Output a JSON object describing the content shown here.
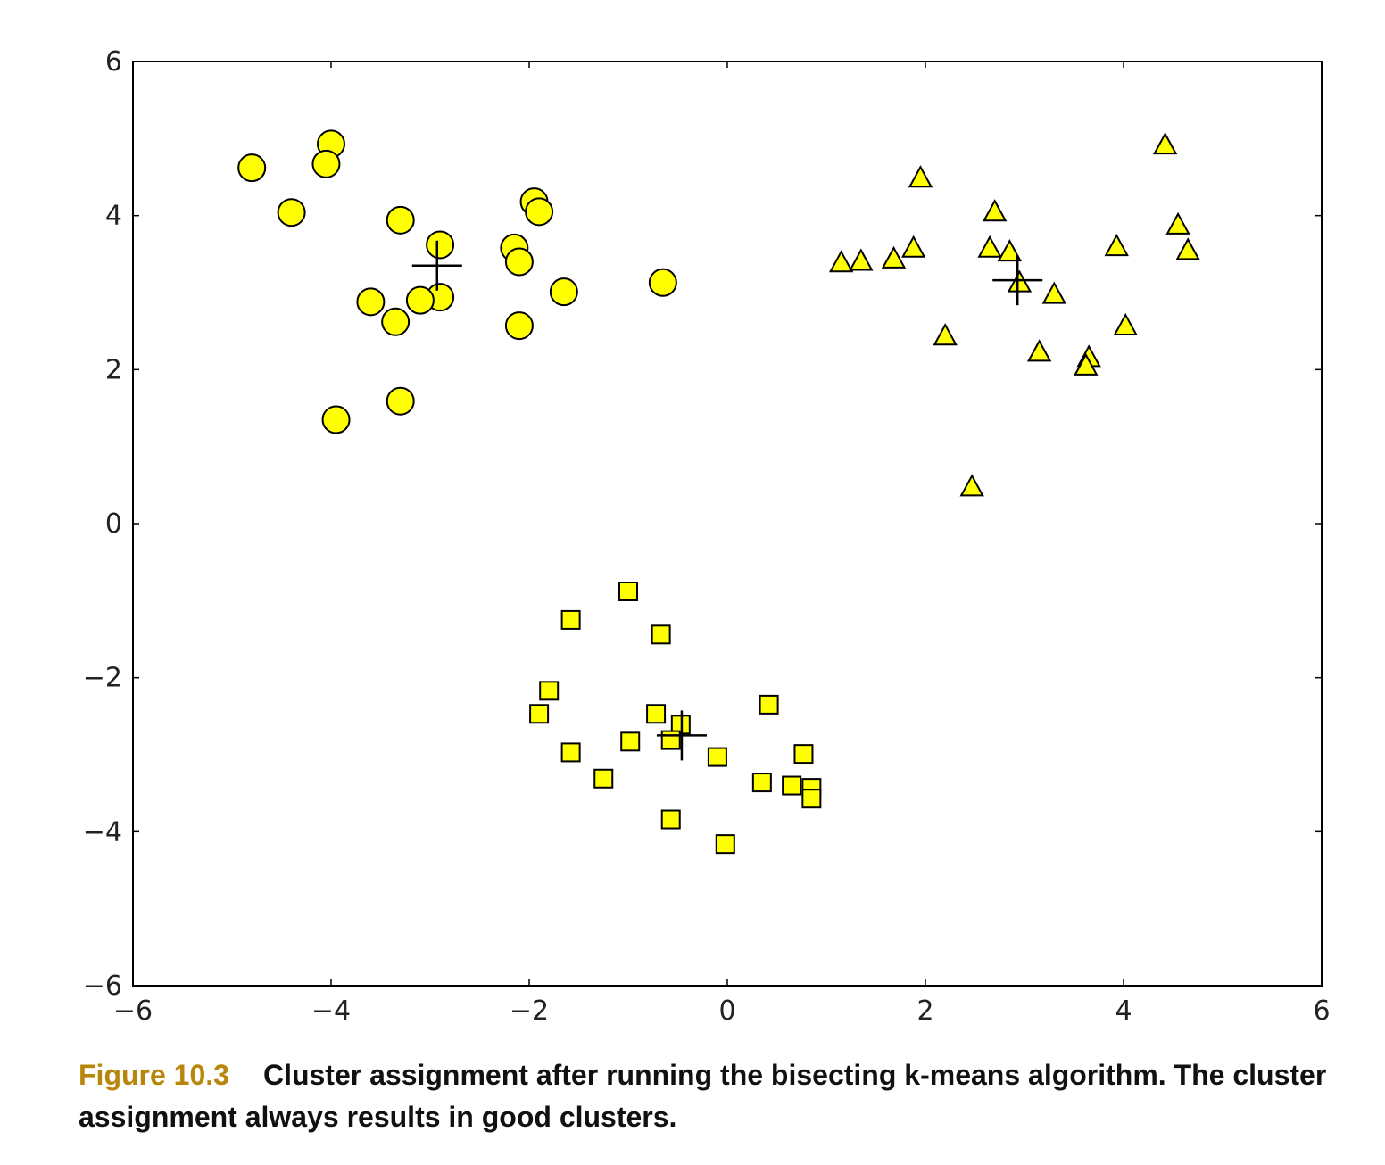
{
  "chart_data": {
    "type": "scatter",
    "xlim": [
      -6,
      6
    ],
    "ylim": [
      -6,
      6
    ],
    "xticks": [
      "−6",
      "−4",
      "−2",
      "0",
      "2",
      "4",
      "6"
    ],
    "yticks": [
      "−6",
      "−4",
      "−2",
      "0",
      "2",
      "4",
      "6"
    ],
    "grid": false,
    "marker_color": "#ffff00",
    "series": [
      {
        "marker": "circle",
        "points": [
          [
            -4.8,
            4.62
          ],
          [
            -4.4,
            4.04
          ],
          [
            -4.0,
            4.93
          ],
          [
            -4.05,
            4.67
          ],
          [
            -3.3,
            3.94
          ],
          [
            -2.9,
            3.62
          ],
          [
            -2.9,
            2.94
          ],
          [
            -3.1,
            2.9
          ],
          [
            -3.6,
            2.88
          ],
          [
            -3.35,
            2.62
          ],
          [
            -3.3,
            1.59
          ],
          [
            -3.95,
            1.35
          ],
          [
            -1.95,
            4.18
          ],
          [
            -1.9,
            4.05
          ],
          [
            -2.15,
            3.58
          ],
          [
            -2.1,
            3.4
          ],
          [
            -2.1,
            2.57
          ],
          [
            -1.65,
            3.01
          ],
          [
            -0.65,
            3.13
          ]
        ]
      },
      {
        "marker": "triangle",
        "points": [
          [
            1.15,
            3.38
          ],
          [
            1.35,
            3.4
          ],
          [
            1.68,
            3.43
          ],
          [
            1.88,
            3.57
          ],
          [
            1.95,
            4.48
          ],
          [
            2.2,
            2.43
          ],
          [
            2.47,
            0.47
          ],
          [
            2.65,
            3.57
          ],
          [
            2.7,
            4.04
          ],
          [
            2.85,
            3.52
          ],
          [
            2.95,
            3.12
          ],
          [
            3.15,
            2.22
          ],
          [
            3.3,
            2.97
          ],
          [
            3.65,
            2.15
          ],
          [
            3.62,
            2.04
          ],
          [
            3.93,
            3.59
          ],
          [
            4.02,
            2.56
          ],
          [
            4.42,
            4.91
          ],
          [
            4.55,
            3.87
          ],
          [
            4.65,
            3.54
          ]
        ]
      },
      {
        "marker": "square",
        "points": [
          [
            -1.0,
            -0.88
          ],
          [
            -1.58,
            -1.25
          ],
          [
            -0.67,
            -1.44
          ],
          [
            -1.8,
            -2.17
          ],
          [
            -1.9,
            -2.47
          ],
          [
            -0.72,
            -2.47
          ],
          [
            -0.47,
            -2.61
          ],
          [
            -0.57,
            -2.81
          ],
          [
            -0.98,
            -2.83
          ],
          [
            -1.58,
            -2.97
          ],
          [
            -0.1,
            -3.03
          ],
          [
            0.42,
            -2.35
          ],
          [
            0.77,
            -2.99
          ],
          [
            -1.25,
            -3.31
          ],
          [
            0.35,
            -3.36
          ],
          [
            0.65,
            -3.4
          ],
          [
            0.85,
            -3.43
          ],
          [
            0.85,
            -3.57
          ],
          [
            -0.57,
            -3.84
          ],
          [
            -0.02,
            -4.16
          ]
        ]
      }
    ],
    "centroids": [
      [
        -2.93,
        3.35
      ],
      [
        2.93,
        3.16
      ],
      [
        -0.46,
        -2.75
      ]
    ]
  },
  "caption": {
    "label": "Figure 10.3",
    "text": "Cluster assignment after running the bisecting k-means algorithm. The cluster assignment always results in good clusters."
  }
}
